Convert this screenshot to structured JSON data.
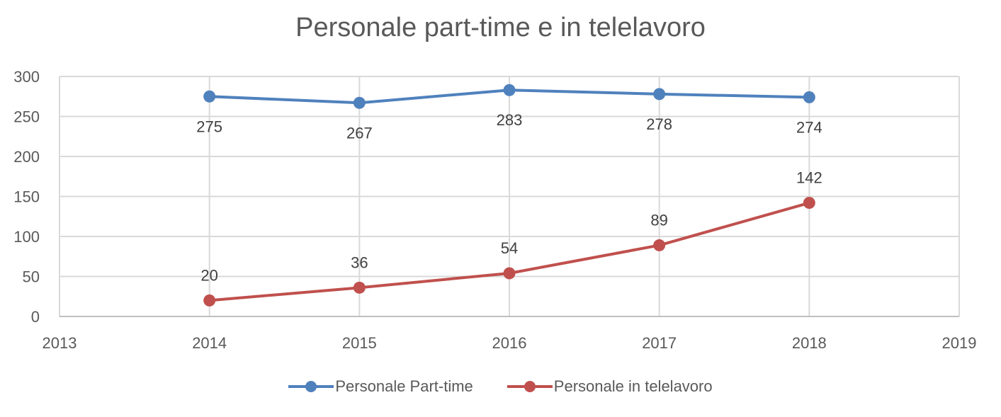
{
  "chart_data": {
    "type": "line",
    "title": "Personale part-time e in telelavoro",
    "xlabel": "",
    "ylabel": "",
    "x": [
      2014,
      2015,
      2016,
      2017,
      2018
    ],
    "xlim": [
      2013,
      2019
    ],
    "ylim": [
      0,
      300
    ],
    "x_ticks": [
      "2013",
      "2014",
      "2015",
      "2016",
      "2017",
      "2018",
      "2019"
    ],
    "y_ticks": [
      "0",
      "50",
      "100",
      "150",
      "200",
      "250",
      "300"
    ],
    "grid": true,
    "legend_position": "bottom",
    "series": [
      {
        "name": "Personale Part-time",
        "color": "#4f81bd",
        "values": [
          275,
          267,
          283,
          278,
          274
        ],
        "label_position": "below"
      },
      {
        "name": "Personale in telelavoro",
        "color": "#c0504d",
        "values": [
          20,
          36,
          54,
          89,
          142
        ],
        "label_position": "above"
      }
    ]
  },
  "legend": {
    "items": [
      {
        "label": "Personale Part-time",
        "color": "#4f81bd"
      },
      {
        "label": "Personale in telelavoro",
        "color": "#c0504d"
      }
    ]
  }
}
